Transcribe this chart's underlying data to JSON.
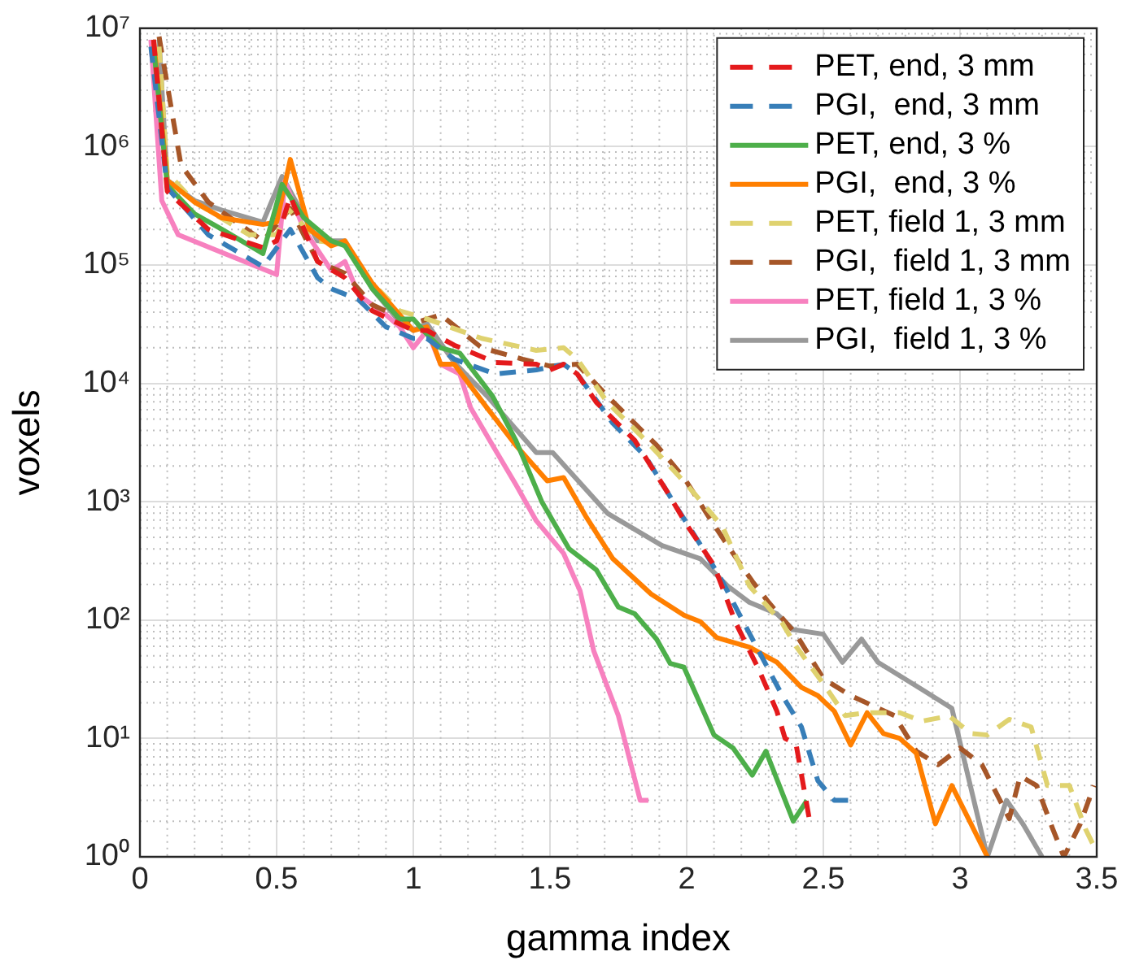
{
  "chart_data": {
    "type": "line",
    "xlabel": "gamma index",
    "ylabel": "voxels",
    "log": "y",
    "grid": true,
    "legend": "top right",
    "marker": "none",
    "xlim": [
      0,
      3.5
    ],
    "xticks": [
      0,
      0.5,
      1,
      1.5,
      2,
      2.5,
      3,
      3.5
    ],
    "ylim": [
      1,
      10000000
    ],
    "yticks": [
      {
        "value": 1,
        "label": "10⁰"
      },
      {
        "value": 10,
        "label": "10¹"
      },
      {
        "value": 100,
        "label": "10²"
      },
      {
        "value": 1000,
        "label": "10³"
      },
      {
        "value": 10000,
        "label": "10⁴"
      },
      {
        "value": 100000,
        "label": "10⁵"
      },
      {
        "value": 1000000,
        "label": "10⁶"
      },
      {
        "value": 10000000,
        "label": "10⁷"
      }
    ],
    "series": [
      {
        "name": "PET, end, 3 mm",
        "color": "#e41a1c",
        "line_style": "dashed",
        "x": [
          0.05,
          0.1,
          0.25,
          0.45,
          0.5,
          0.55,
          0.65,
          0.75,
          0.85,
          1.0,
          1.05,
          1.15,
          1.3,
          1.45,
          1.5,
          1.55,
          1.6,
          1.67,
          1.81,
          1.93,
          2.0,
          2.1,
          2.18,
          2.26,
          2.33,
          2.36,
          2.4,
          2.45
        ],
        "values": [
          8000000,
          420000,
          200000,
          140000,
          160000,
          380000,
          107000,
          78000,
          41000,
          28000,
          28000,
          21000,
          15000,
          14500,
          13000,
          14500,
          12000,
          6900,
          3300,
          1200,
          640,
          290,
          94,
          40,
          17,
          10,
          9,
          2
        ]
      },
      {
        "name": "PGI,  end, 3 mm",
        "color": "#377eb8",
        "line_style": "dashed",
        "x": [
          0.04,
          0.1,
          0.25,
          0.45,
          0.55,
          0.65,
          0.7,
          0.8,
          0.9,
          1.0,
          1.05,
          1.15,
          1.3,
          1.45,
          1.55,
          1.6,
          1.73,
          1.85,
          1.97,
          2.06,
          2.13,
          2.21,
          2.35,
          2.42,
          2.48,
          2.54,
          2.6
        ],
        "values": [
          7000000,
          450000,
          180000,
          97000,
          200000,
          78000,
          63000,
          51000,
          30000,
          24000,
          24000,
          16000,
          12000,
          13000,
          14500,
          12000,
          4600,
          2400,
          850,
          400,
          213,
          94,
          23,
          12.5,
          4.4,
          3,
          3
        ]
      },
      {
        "name": "PET, end, 3 %",
        "color": "#4daf4a",
        "line_style": "solid",
        "x": [
          0.05,
          0.1,
          0.2,
          0.3,
          0.45,
          0.52,
          0.6,
          0.7,
          0.75,
          0.85,
          0.95,
          1.0,
          1.05,
          1.1,
          1.17,
          1.29,
          1.375,
          1.47,
          1.57,
          1.67,
          1.75,
          1.81,
          1.89,
          1.94,
          1.99,
          2.1,
          2.17,
          2.24,
          2.29,
          2.39,
          2.44
        ],
        "values": [
          7000000,
          470000,
          270000,
          200000,
          125000,
          480000,
          250000,
          160000,
          145000,
          63000,
          35000,
          35000,
          26000,
          20000,
          18000,
          7800,
          3300,
          1000,
          400,
          265,
          129,
          113,
          69,
          43,
          40,
          10.7,
          8.3,
          4.9,
          7.8,
          2,
          3
        ]
      },
      {
        "name": "PGI,  end, 3 %",
        "color": "#ff7f00",
        "line_style": "solid",
        "x": [
          0.05,
          0.1,
          0.2,
          0.3,
          0.45,
          0.5,
          0.55,
          0.62,
          0.7,
          0.75,
          0.85,
          1.0,
          1.05,
          1.1,
          1.15,
          1.27,
          1.375,
          1.49,
          1.55,
          1.63,
          1.73,
          1.87,
          1.99,
          2.05,
          2.11,
          2.23,
          2.33,
          2.42,
          2.48,
          2.54,
          2.6,
          2.66,
          2.72,
          2.78,
          2.84,
          2.91,
          2.97,
          3.04,
          3.1
        ],
        "values": [
          8000000,
          520000,
          340000,
          250000,
          220000,
          230000,
          780000,
          200000,
          145000,
          160000,
          70000,
          28000,
          30000,
          14500,
          14500,
          6200,
          3000,
          1500,
          1600,
          760,
          330,
          166,
          110,
          97,
          71,
          59,
          44,
          27,
          23,
          17,
          8.8,
          16.5,
          11,
          10,
          7.5,
          1.9,
          4,
          1.9,
          1
        ]
      },
      {
        "name": "PET, field 1, 3 mm",
        "color": "#dfd26f",
        "line_style": "dashed",
        "x": [
          0.07,
          0.1,
          0.2,
          0.4,
          0.5,
          0.54,
          0.65,
          0.75,
          0.85,
          0.95,
          1.05,
          1.25,
          1.45,
          1.55,
          1.6,
          1.71,
          1.85,
          2.0,
          2.13,
          2.23,
          2.35,
          2.4,
          2.5,
          2.58,
          2.66,
          2.78,
          2.86,
          2.96,
          3.04,
          3.1,
          3.18,
          3.26,
          3.32,
          3.4,
          3.46,
          3.5
        ],
        "values": [
          7000000,
          600000,
          340000,
          180000,
          180000,
          300000,
          160000,
          150000,
          70000,
          41000,
          35000,
          24000,
          19000,
          20000,
          16000,
          6900,
          3300,
          1400,
          620,
          194,
          94,
          60,
          29,
          15.6,
          16.5,
          16.5,
          14,
          15.5,
          11,
          10.7,
          14.5,
          12.5,
          4,
          4,
          1.7,
          1.1
        ]
      },
      {
        "name": "PGI,  field 1, 3 mm",
        "color": "#a65628",
        "line_style": "dashed",
        "x": [
          0.07,
          0.15,
          0.25,
          0.45,
          0.55,
          0.65,
          0.75,
          0.85,
          1.0,
          1.1,
          1.25,
          1.4,
          1.5,
          1.6,
          1.71,
          1.89,
          1.99,
          2.09,
          2.17,
          2.24,
          2.3,
          2.4,
          2.5,
          2.6,
          2.76,
          2.84,
          2.92,
          3.0,
          3.08,
          3.18,
          3.22,
          3.28,
          3.34,
          3.38,
          3.44,
          3.49
        ],
        "values": [
          8500000,
          700000,
          340000,
          160000,
          300000,
          107000,
          85000,
          46000,
          32000,
          38000,
          20000,
          16000,
          14000,
          14500,
          7800,
          3000,
          1600,
          690,
          365,
          213,
          141,
          76,
          32,
          23,
          15.6,
          7.8,
          6,
          8.3,
          6,
          2.1,
          4.8,
          4,
          1.7,
          1,
          1.9,
          4
        ]
      },
      {
        "name": "PET, field 1, 3 %",
        "color": "#f781bf",
        "line_style": "solid",
        "x": [
          0.04,
          0.08,
          0.14,
          0.5,
          0.53,
          0.6,
          0.7,
          0.75,
          0.8,
          0.9,
          0.95,
          1.0,
          1.05,
          1.1,
          1.17,
          1.21,
          1.29,
          1.375,
          1.45,
          1.55,
          1.61,
          1.66,
          1.75,
          1.83,
          1.86
        ],
        "values": [
          8000000,
          350000,
          180000,
          83000,
          510000,
          200000,
          90000,
          107000,
          56000,
          38000,
          30000,
          20000,
          28000,
          14500,
          12000,
          6200,
          3000,
          1400,
          690,
          365,
          177,
          55,
          15.6,
          3,
          3
        ]
      },
      {
        "name": "PGI,  field 1, 3 %",
        "color": "#999999",
        "line_style": "solid",
        "x": [
          0.07,
          0.1,
          0.2,
          0.3,
          0.45,
          0.52,
          0.65,
          0.75,
          0.85,
          0.95,
          1.0,
          1.05,
          1.15,
          1.27,
          1.45,
          1.51,
          1.71,
          1.91,
          2.05,
          2.15,
          2.23,
          2.33,
          2.39,
          2.5,
          2.57,
          2.64,
          2.7,
          2.86,
          2.97,
          3.1,
          3.17,
          3.23,
          3.3
        ],
        "values": [
          8000000,
          520000,
          350000,
          290000,
          230000,
          560000,
          160000,
          160000,
          63000,
          33000,
          28000,
          32000,
          15000,
          7800,
          2600,
          2600,
          800,
          426,
          330,
          194,
          141,
          113,
          83,
          76,
          44,
          69,
          44,
          26,
          18,
          1,
          3,
          1.9,
          1
        ]
      }
    ]
  }
}
